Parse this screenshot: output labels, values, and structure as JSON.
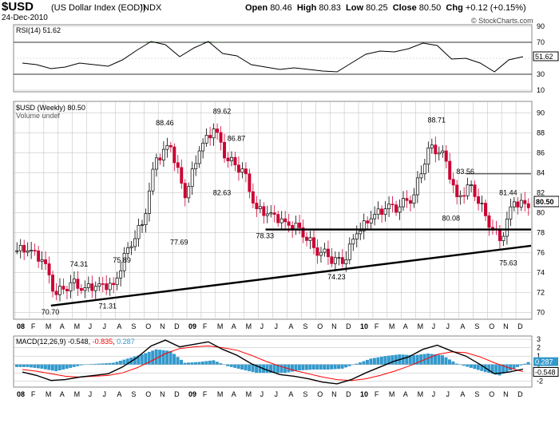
{
  "header": {
    "symbol": "$USD",
    "name": "(US Dollar Index (EOD))",
    "exchange": "INDX",
    "date": "24-Dec-2010",
    "open_label": "Open",
    "open": "80.46",
    "high_label": "High",
    "high": "80.83",
    "low_label": "Low",
    "low": "80.25",
    "close_label": "Close",
    "close": "80.50",
    "chg_label": "Chg",
    "chg": "+0.12 (+0.15%)",
    "copyright": "© StockCharts.com"
  },
  "colors": {
    "up": "#000000",
    "down": "#cc0033",
    "rsi_line": "#000000",
    "rsi_fill": "#336633",
    "macd_line": "#000000",
    "signal_line": "#ff0000",
    "histogram": "#3399cc",
    "trendline": "#000000",
    "grid": "#bbbbbb"
  },
  "chart_data": [
    {
      "type": "line",
      "name": "rsi",
      "title": "RSI(14) 51.62",
      "current_value": "51.62",
      "ylim": [
        10,
        90
      ],
      "y_ticks": [
        10,
        30,
        50,
        70,
        90
      ],
      "reference_lines": [
        30,
        70
      ],
      "series": [
        {
          "name": "RSI(14)",
          "x": [
            "2008-01",
            "2008-02",
            "2008-03",
            "2008-04",
            "2008-05",
            "2008-06",
            "2008-07",
            "2008-08",
            "2008-09",
            "2008-10",
            "2008-11",
            "2008-12",
            "2009-01",
            "2009-02",
            "2009-03",
            "2009-04",
            "2009-05",
            "2009-06",
            "2009-07",
            "2009-08",
            "2009-09",
            "2009-10",
            "2009-11",
            "2009-12",
            "2010-01",
            "2010-02",
            "2010-03",
            "2010-04",
            "2010-05",
            "2010-06",
            "2010-07",
            "2010-08",
            "2010-09",
            "2010-10",
            "2010-11",
            "2010-12"
          ],
          "values": [
            44,
            42,
            37,
            39,
            44,
            42,
            40,
            48,
            60,
            71,
            67,
            52,
            63,
            71,
            56,
            53,
            42,
            39,
            36,
            38,
            36,
            34,
            33,
            44,
            55,
            59,
            58,
            62,
            69,
            66,
            49,
            50,
            44,
            33,
            48,
            52
          ]
        }
      ]
    },
    {
      "type": "bar",
      "name": "price",
      "title": "$USD (Weekly) 80.50",
      "volume_label": "Volume undef",
      "last_price": "80.50",
      "ylim": [
        69.5,
        91
      ],
      "y_ticks": [
        70,
        72,
        74,
        76,
        78,
        80,
        82,
        84,
        86,
        88,
        90
      ],
      "x_labels": [
        "08",
        "F",
        "M",
        "A",
        "M",
        "J",
        "J",
        "A",
        "S",
        "O",
        "N",
        "D",
        "09",
        "F",
        "M",
        "A",
        "M",
        "J",
        "J",
        "A",
        "S",
        "O",
        "N",
        "D",
        "10",
        "F",
        "M",
        "A",
        "M",
        "J",
        "J",
        "A",
        "S",
        "O",
        "N",
        "D"
      ],
      "annotations": [
        {
          "text": "70.70",
          "x": "2008-03",
          "y": 70.7,
          "pos": "below"
        },
        {
          "text": "74.31",
          "x": "2008-05",
          "y": 74.31,
          "pos": "above"
        },
        {
          "text": "71.31",
          "x": "2008-07",
          "y": 71.31,
          "pos": "below"
        },
        {
          "text": "75.89",
          "x": "2008-08",
          "y": 75.89,
          "pos": "below"
        },
        {
          "text": "88.46",
          "x": "2008-11",
          "y": 88.46,
          "pos": "above"
        },
        {
          "text": "77.69",
          "x": "2008-12",
          "y": 77.69,
          "pos": "below"
        },
        {
          "text": "89.62",
          "x": "2009-03",
          "y": 89.62,
          "pos": "above"
        },
        {
          "text": "82.63",
          "x": "2009-03",
          "y": 82.63,
          "pos": "below"
        },
        {
          "text": "86.87",
          "x": "2009-04",
          "y": 86.87,
          "pos": "above"
        },
        {
          "text": "78.33",
          "x": "2009-06",
          "y": 78.33,
          "pos": "below"
        },
        {
          "text": "74.23",
          "x": "2009-11",
          "y": 74.23,
          "pos": "below"
        },
        {
          "text": "88.71",
          "x": "2010-06",
          "y": 88.71,
          "pos": "above"
        },
        {
          "text": "80.08",
          "x": "2010-07",
          "y": 80.08,
          "pos": "below"
        },
        {
          "text": "83.56",
          "x": "2010-08",
          "y": 83.56,
          "pos": "above"
        },
        {
          "text": "81.44",
          "x": "2010-11",
          "y": 81.44,
          "pos": "above"
        },
        {
          "text": "75.63",
          "x": "2010-11",
          "y": 75.63,
          "pos": "below"
        }
      ],
      "trendlines": [
        {
          "from": {
            "x": "2008-03",
            "y": 70.7
          },
          "to": {
            "x": "2010-12",
            "y": 76.7
          }
        },
        {
          "from": {
            "x": "2009-06",
            "y": 78.33
          },
          "to": {
            "x": "2010-12",
            "y": 78.33
          }
        }
      ],
      "reference_lines": [
        {
          "y": 83.9,
          "from_x": "2010-08",
          "to_x": "2010-12"
        }
      ],
      "series": [
        {
          "name": "weekly_close",
          "x": [
            "2008-01",
            "2008-02",
            "2008-03",
            "2008-04",
            "2008-05",
            "2008-06",
            "2008-07",
            "2008-08",
            "2008-09",
            "2008-10",
            "2008-11",
            "2008-12",
            "2009-01",
            "2009-02",
            "2009-03",
            "2009-04",
            "2009-05",
            "2009-06",
            "2009-07",
            "2009-08",
            "2009-09",
            "2009-10",
            "2009-11",
            "2009-12",
            "2010-01",
            "2010-02",
            "2010-03",
            "2010-04",
            "2010-05",
            "2010-06",
            "2010-07",
            "2010-08",
            "2010-09",
            "2010-10",
            "2010-11",
            "2010-12"
          ],
          "values": [
            76.2,
            75.3,
            71.8,
            73.0,
            72.5,
            72.9,
            72.8,
            76.5,
            78.8,
            85.5,
            86.6,
            81.5,
            86.2,
            88.4,
            85.2,
            84.4,
            80.4,
            80.0,
            79.1,
            78.5,
            76.5,
            75.6,
            74.9,
            77.9,
            79.4,
            80.4,
            80.6,
            81.8,
            86.5,
            86.2,
            81.6,
            82.8,
            79.7,
            77.2,
            81.1,
            80.5
          ]
        }
      ]
    },
    {
      "type": "line",
      "name": "macd",
      "title": "MACD(12,26,9)",
      "macd_value": "-0.548",
      "signal_value": "-0.835",
      "hist_value": "0.287",
      "ylim": [
        -2.5,
        3.2
      ],
      "y_ticks": [
        -2,
        -1,
        0,
        1,
        2,
        3
      ],
      "series": [
        {
          "name": "MACD",
          "x": [
            "2008-01",
            "2008-02",
            "2008-03",
            "2008-04",
            "2008-05",
            "2008-06",
            "2008-07",
            "2008-08",
            "2008-09",
            "2008-10",
            "2008-11",
            "2008-12",
            "2009-01",
            "2009-02",
            "2009-03",
            "2009-04",
            "2009-05",
            "2009-06",
            "2009-07",
            "2009-08",
            "2009-09",
            "2009-10",
            "2009-11",
            "2009-12",
            "2010-01",
            "2010-02",
            "2010-03",
            "2010-04",
            "2010-05",
            "2010-06",
            "2010-07",
            "2010-08",
            "2010-09",
            "2010-10",
            "2010-11",
            "2010-12"
          ],
          "values": [
            -0.9,
            -1.3,
            -1.9,
            -1.8,
            -1.5,
            -1.3,
            -1.1,
            -0.3,
            0.8,
            2.2,
            2.9,
            2.1,
            2.4,
            2.7,
            1.8,
            1.1,
            0.1,
            -0.6,
            -1.2,
            -1.4,
            -1.7,
            -2.1,
            -2.3,
            -1.8,
            -1.0,
            -0.3,
            0.4,
            0.9,
            1.8,
            2.3,
            1.6,
            1.0,
            0.0,
            -1.1,
            -0.9,
            -0.55
          ]
        },
        {
          "name": "Signal",
          "values": [
            -0.6,
            -0.8,
            -1.1,
            -1.4,
            -1.5,
            -1.4,
            -1.3,
            -1.0,
            -0.4,
            0.4,
            1.3,
            1.9,
            2.1,
            2.2,
            2.0,
            1.7,
            1.1,
            0.4,
            -0.2,
            -0.7,
            -1.1,
            -1.5,
            -1.8,
            -1.9,
            -1.7,
            -1.3,
            -0.8,
            -0.2,
            0.5,
            1.2,
            1.5,
            1.4,
            0.9,
            0.2,
            -0.4,
            -0.84
          ]
        },
        {
          "name": "Histogram",
          "values": [
            -0.3,
            -0.5,
            -0.8,
            -0.4,
            0.0,
            0.1,
            0.2,
            0.7,
            1.2,
            1.8,
            1.6,
            0.2,
            0.3,
            0.5,
            -0.2,
            -0.6,
            -1.0,
            -1.0,
            -1.0,
            -0.7,
            -0.6,
            -0.6,
            -0.5,
            0.1,
            0.7,
            1.0,
            1.2,
            1.1,
            1.3,
            1.1,
            0.1,
            -0.4,
            -0.9,
            -1.3,
            -0.5,
            0.29
          ]
        }
      ]
    }
  ]
}
